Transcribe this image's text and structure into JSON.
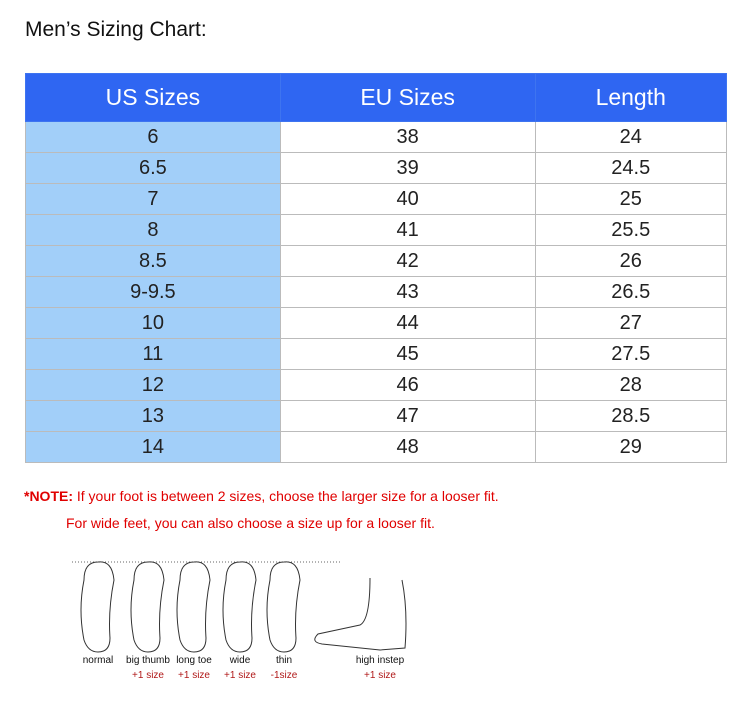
{
  "title": "Men’s Sizing Chart:",
  "table": {
    "headers": [
      "US Sizes",
      "EU Sizes",
      "Length"
    ],
    "rows": [
      [
        "6",
        "38",
        "24"
      ],
      [
        "6.5",
        "39",
        "24.5"
      ],
      [
        "7",
        "40",
        "25"
      ],
      [
        "8",
        "41",
        "25.5"
      ],
      [
        "8.5",
        "42",
        "26"
      ],
      [
        "9-9.5",
        "43",
        "26.5"
      ],
      [
        "10",
        "44",
        "27"
      ],
      [
        "11",
        "45",
        "27.5"
      ],
      [
        "12",
        "46",
        "28"
      ],
      [
        "13",
        "47",
        "28.5"
      ],
      [
        "14",
        "48",
        "29"
      ]
    ]
  },
  "note": {
    "prefix": "*NOTE:",
    "text": " If your foot is between 2 sizes, choose the larger size for a looser fit.",
    "line2": "For wide feet, you can also choose a size up for a looser fit."
  },
  "feet": [
    {
      "label": "normal",
      "adj": ""
    },
    {
      "label": "big thumb",
      "adj": "+1 size"
    },
    {
      "label": "long toe",
      "adj": "+1 size"
    },
    {
      "label": "wide",
      "adj": "+1 size"
    },
    {
      "label": "thin",
      "adj": "-1size"
    },
    {
      "label": "high instep",
      "adj": "+1 size"
    }
  ],
  "colors": {
    "header": "#2f66f2",
    "us_column": "#a2cff9",
    "note": "#e00000"
  }
}
